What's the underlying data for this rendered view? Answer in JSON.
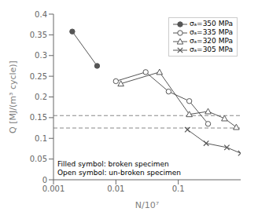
{
  "chart_data": {
    "type": "line",
    "title": "",
    "xlabel": "N/10⁷",
    "ylabel": "Q [MJ/(m³ cycle)]",
    "log": "x",
    "xlim": [
      0.001,
      1.0
    ],
    "ylim": [
      0,
      0.4
    ],
    "xticks": [
      0.001,
      0.01,
      0.1
    ],
    "yticks": [
      0,
      0.05,
      0.1,
      0.15,
      0.2,
      0.25,
      0.3,
      0.35,
      0.4
    ],
    "grid": false,
    "legend": "upper right",
    "series": [
      {
        "name": "σₐ=350 MPa",
        "color": "#555555",
        "marker": "filled_circle",
        "x": [
          0.002,
          0.005
        ],
        "values": [
          0.358,
          0.275
        ]
      },
      {
        "name": "σₐ=335 MPa",
        "color": "#555555",
        "marker": "open_circle",
        "x": [
          0.01,
          0.03,
          0.07,
          0.15,
          0.3
        ],
        "values": [
          0.238,
          0.26,
          0.213,
          0.19,
          0.135
        ]
      },
      {
        "name": "σₐ=320 MPa",
        "color": "#555555",
        "marker": "open_triangle",
        "x": [
          0.012,
          0.05,
          0.15,
          0.3,
          0.55,
          0.85
        ],
        "values": [
          0.232,
          0.26,
          0.158,
          0.165,
          0.148,
          0.127
        ]
      },
      {
        "name": "σₐ=305 MPa",
        "color": "#555555",
        "marker": "x",
        "x": [
          0.14,
          0.28,
          0.6,
          1.0
        ],
        "values": [
          0.121,
          0.088,
          0.078,
          0.064
        ]
      }
    ],
    "hlines": [
      {
        "value": 0.155,
        "color": "#888888",
        "line_style": "dashed"
      },
      {
        "value": 0.125,
        "color": "#888888",
        "line_style": "dashed"
      }
    ],
    "annotations": [
      "Filled symbol: broken specimen",
      "Open symbol: un-broken specimen"
    ]
  }
}
